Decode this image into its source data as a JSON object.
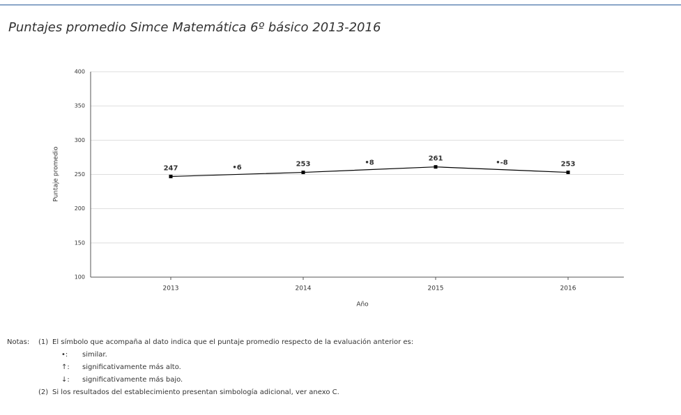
{
  "chart_data": {
    "type": "line",
    "title": "Puntajes promedio Simce Matemática 6º básico 2013-2016",
    "categories": [
      "2013",
      "2014",
      "2015",
      "2016"
    ],
    "series": [
      {
        "name": "Puntaje promedio",
        "color": "#000000",
        "values": [
          247,
          253,
          261,
          253
        ]
      }
    ],
    "annotations": [
      "•6",
      "•8",
      "•-8"
    ],
    "ylabel": "Puntaje promedio",
    "xlabel": "Año",
    "ylim": [
      100,
      400
    ],
    "yticks": [
      100,
      150,
      200,
      250,
      300,
      350,
      400
    ],
    "grid": true
  },
  "notes": {
    "label": "Notas:",
    "items": [
      {
        "marker": "(1)",
        "text": "El símbolo que acompaña al dato indica que el puntaje promedio respecto de la evaluación anterior es:"
      },
      {
        "marker": "(2)",
        "text": "Si los resultados del establecimiento presentan simbología adicional, ver anexo C."
      }
    ],
    "legend": [
      {
        "symbol": "•:",
        "text": "similar."
      },
      {
        "symbol": "↑:",
        "text": "significativamente más alto."
      },
      {
        "symbol": "↓:",
        "text": "significativamente más bajo."
      }
    ]
  }
}
